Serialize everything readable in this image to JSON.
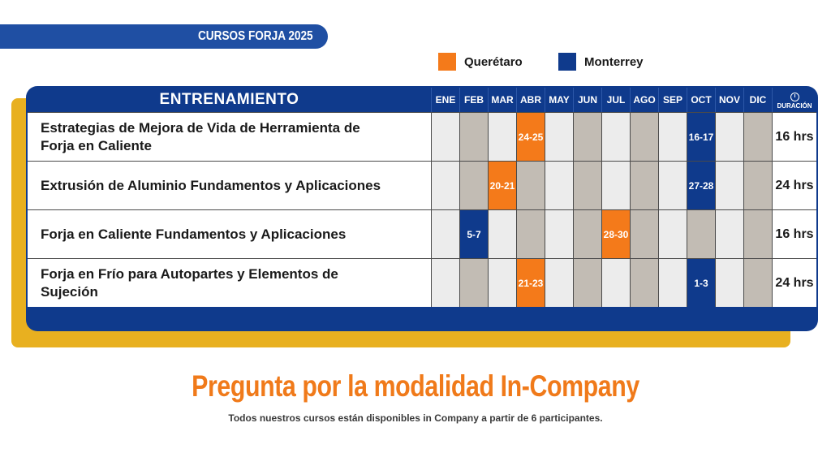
{
  "header": {
    "title": "CURSOS FORJA 2025"
  },
  "legend": [
    {
      "label": "Querétaro",
      "color": "#f47a1a"
    },
    {
      "label": "Monterrey",
      "color": "#0f3a8c"
    }
  ],
  "table": {
    "title": "ENTRENAMIENTO",
    "months": [
      "ENE",
      "FEB",
      "MAR",
      "ABR",
      "MAY",
      "JUN",
      "JUL",
      "AGO",
      "SEP",
      "OCT",
      "NOV",
      "DIC"
    ],
    "duration_header": "DURACIÓN",
    "duration_icon": "clock-icon",
    "rows": [
      {
        "name_lines": [
          "Estrategias de Mejora de Vida de Herramienta de",
          "Forja en Caliente"
        ],
        "cells": [
          {
            "text": "",
            "style": "light"
          },
          {
            "text": "",
            "style": "gray"
          },
          {
            "text": "",
            "style": "light"
          },
          {
            "text": "24-25",
            "style": "q"
          },
          {
            "text": "",
            "style": "light"
          },
          {
            "text": "",
            "style": "gray"
          },
          {
            "text": "",
            "style": "light"
          },
          {
            "text": "",
            "style": "gray"
          },
          {
            "text": "",
            "style": "light"
          },
          {
            "text": "16-17",
            "style": "m"
          },
          {
            "text": "",
            "style": "light"
          },
          {
            "text": "",
            "style": "gray"
          }
        ],
        "duration": "16 hrs"
      },
      {
        "name_lines": [
          "Extrusión de Aluminio Fundamentos y Aplicaciones"
        ],
        "cells": [
          {
            "text": "",
            "style": "light"
          },
          {
            "text": "",
            "style": "gray"
          },
          {
            "text": "20-21",
            "style": "q"
          },
          {
            "text": "",
            "style": "gray"
          },
          {
            "text": "",
            "style": "light"
          },
          {
            "text": "",
            "style": "gray"
          },
          {
            "text": "",
            "style": "light"
          },
          {
            "text": "",
            "style": "gray"
          },
          {
            "text": "",
            "style": "light"
          },
          {
            "text": "27-28",
            "style": "m"
          },
          {
            "text": "",
            "style": "light"
          },
          {
            "text": "",
            "style": "gray"
          }
        ],
        "duration": "24 hrs"
      },
      {
        "name_lines": [
          "Forja en Caliente Fundamentos y Aplicaciones"
        ],
        "cells": [
          {
            "text": "",
            "style": "light"
          },
          {
            "text": "5-7",
            "style": "m"
          },
          {
            "text": "",
            "style": "light"
          },
          {
            "text": "",
            "style": "gray"
          },
          {
            "text": "",
            "style": "light"
          },
          {
            "text": "",
            "style": "gray"
          },
          {
            "text": "28-30",
            "style": "q"
          },
          {
            "text": "",
            "style": "gray"
          },
          {
            "text": "",
            "style": "light"
          },
          {
            "text": "",
            "style": "gray"
          },
          {
            "text": "",
            "style": "light"
          },
          {
            "text": "",
            "style": "gray"
          }
        ],
        "duration": "16 hrs"
      },
      {
        "name_lines": [
          "Forja en Frío para Autopartes y Elementos de",
          "Sujeción"
        ],
        "cells": [
          {
            "text": "",
            "style": "light"
          },
          {
            "text": "",
            "style": "gray"
          },
          {
            "text": "",
            "style": "light"
          },
          {
            "text": "21-23",
            "style": "q"
          },
          {
            "text": "",
            "style": "light"
          },
          {
            "text": "",
            "style": "gray"
          },
          {
            "text": "",
            "style": "light"
          },
          {
            "text": "",
            "style": "gray"
          },
          {
            "text": "",
            "style": "light"
          },
          {
            "text": "1-3",
            "style": "m"
          },
          {
            "text": "",
            "style": "light"
          },
          {
            "text": "",
            "style": "gray"
          }
        ],
        "duration": "24 hrs"
      }
    ]
  },
  "promo": {
    "headline": "Pregunta por la modalidad In-Company",
    "subtext": "Todos nuestros cursos están disponibles in Company a partir de 6 participantes."
  }
}
